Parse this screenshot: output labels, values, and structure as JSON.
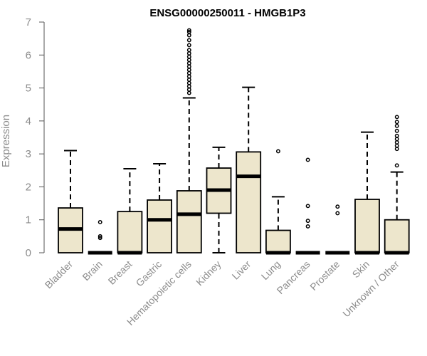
{
  "chart_data": {
    "type": "boxplot",
    "title": "ENSG00000250011 - HMGB1P3",
    "xlabel": "",
    "ylabel": "Expression",
    "ylim": [
      0,
      7
    ],
    "yticks": [
      0,
      1,
      2,
      3,
      4,
      5,
      6,
      7
    ],
    "grid": false,
    "legend": "none",
    "colors": {
      "box_fill": "#ede6cc",
      "box_stroke": "#000000",
      "axis_text": "#8c8c8c"
    },
    "categories": [
      "Bladder",
      "Brain",
      "Breast",
      "Gastric",
      "Hematopoietic cells",
      "Kidney",
      "Liver",
      "Lung",
      "Pancreas",
      "Prostate",
      "Skin",
      "Unknown / Other"
    ],
    "boxes": [
      {
        "category": "Bladder",
        "whisker_low": 0,
        "q1": 0,
        "median": 0.72,
        "q3": 1.36,
        "whisker_high": 3.1,
        "outliers": []
      },
      {
        "category": "Brain",
        "whisker_low": 0,
        "q1": 0,
        "median": 0,
        "q3": 0,
        "whisker_high": 0,
        "outliers": [
          0.45,
          0.5,
          0.93
        ]
      },
      {
        "category": "Breast",
        "whisker_low": 0,
        "q1": 0,
        "median": 0,
        "q3": 1.25,
        "whisker_high": 2.55,
        "outliers": []
      },
      {
        "category": "Gastric",
        "whisker_low": 0,
        "q1": 0,
        "median": 1.0,
        "q3": 1.6,
        "whisker_high": 2.7,
        "outliers": []
      },
      {
        "category": "Hematopoietic cells",
        "whisker_low": 0,
        "q1": 0,
        "median": 1.17,
        "q3": 1.88,
        "whisker_high": 4.7,
        "outliers": [
          4.85,
          4.95,
          5.05,
          5.15,
          5.25,
          5.35,
          5.45,
          5.55,
          5.65,
          5.75,
          5.85,
          5.95,
          6.05,
          6.15,
          6.3,
          6.45,
          6.6,
          6.7,
          6.75
        ]
      },
      {
        "category": "Kidney",
        "whisker_low": 0,
        "q1": 1.2,
        "median": 1.9,
        "q3": 2.57,
        "whisker_high": 3.2,
        "outliers": []
      },
      {
        "category": "Liver",
        "whisker_low": 0,
        "q1": 0,
        "median": 2.32,
        "q3": 3.06,
        "whisker_high": 5.02,
        "outliers": []
      },
      {
        "category": "Lung",
        "whisker_low": 0,
        "q1": 0,
        "median": 0,
        "q3": 0.68,
        "whisker_high": 1.7,
        "outliers": [
          3.08
        ]
      },
      {
        "category": "Pancreas",
        "whisker_low": 0,
        "q1": 0,
        "median": 0,
        "q3": 0,
        "whisker_high": 0,
        "outliers": [
          0.8,
          0.97,
          1.42,
          2.82
        ]
      },
      {
        "category": "Prostate",
        "whisker_low": 0,
        "q1": 0,
        "median": 0,
        "q3": 0,
        "whisker_high": 0,
        "outliers": [
          1.2,
          1.4
        ]
      },
      {
        "category": "Skin",
        "whisker_low": 0,
        "q1": 0,
        "median": 0,
        "q3": 1.62,
        "whisker_high": 3.66,
        "outliers": []
      },
      {
        "category": "Unknown / Other",
        "whisker_low": 0,
        "q1": 0,
        "median": 0,
        "q3": 1.0,
        "whisker_high": 2.45,
        "outliers": [
          2.65,
          3.15,
          3.25,
          3.35,
          3.45,
          3.55,
          3.7,
          3.85,
          3.97,
          4.12
        ]
      }
    ]
  }
}
